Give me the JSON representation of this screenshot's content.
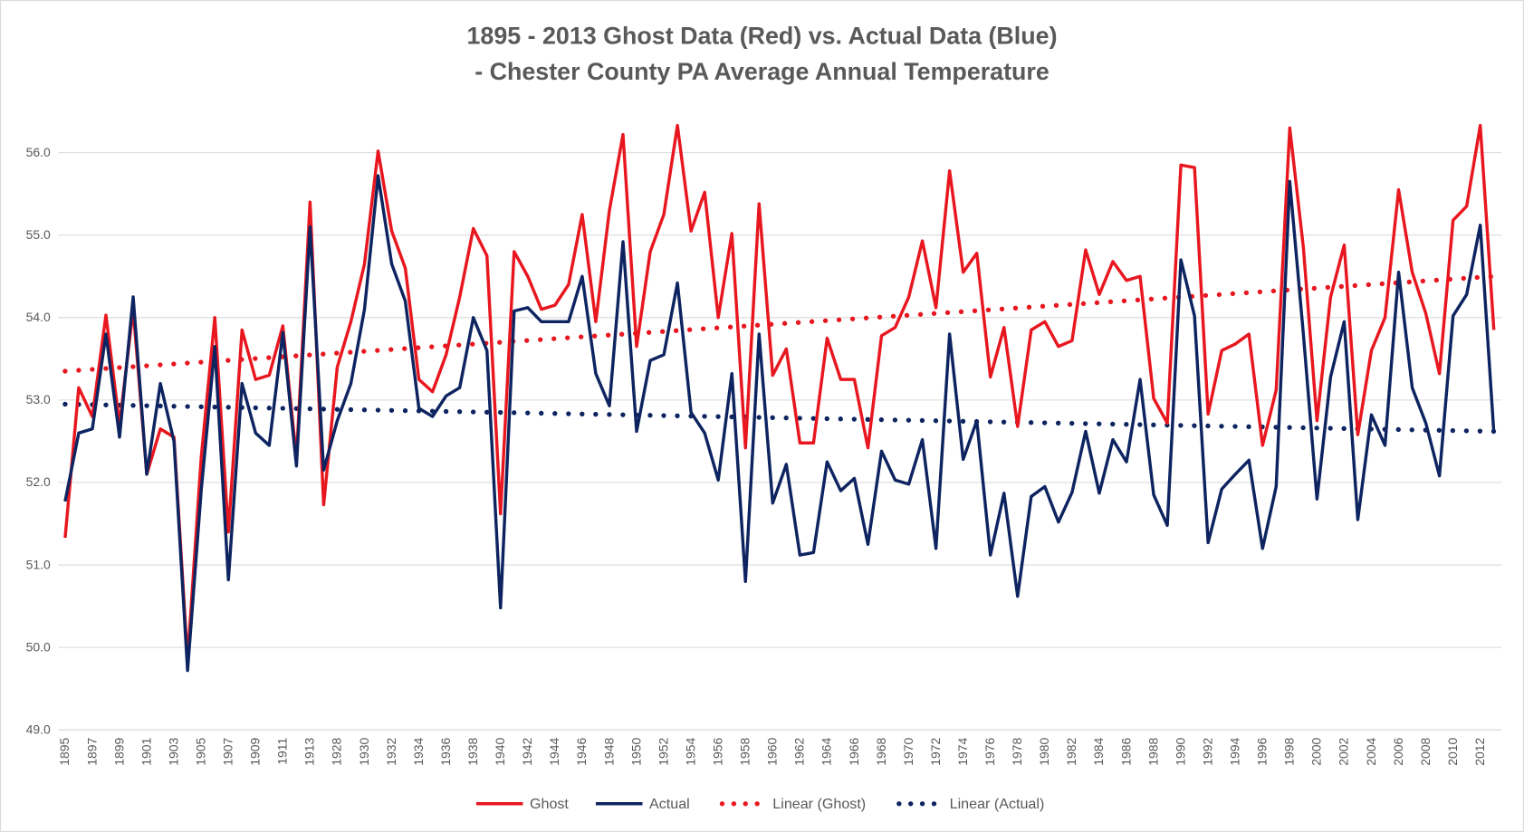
{
  "chart_data": {
    "type": "line",
    "title": [
      "1895 - 2013 Ghost Data (Red) vs. Actual Data (Blue)",
      "- Chester County PA Average Annual Temperature"
    ],
    "categories": [
      "1895",
      null,
      "1897",
      null,
      "1899",
      null,
      "1901",
      null,
      "1903",
      null,
      "1905",
      null,
      "1907",
      null,
      "1909",
      null,
      "1911",
      null,
      "1913",
      null,
      "1928",
      null,
      "1930",
      null,
      "1932",
      null,
      "1934",
      null,
      "1936",
      null,
      "1938",
      null,
      "1940",
      null,
      "1942",
      null,
      "1944",
      null,
      "1946",
      null,
      "1948",
      null,
      "1950",
      null,
      "1952",
      null,
      "1954",
      null,
      "1956",
      null,
      "1958",
      null,
      "1960",
      null,
      "1962",
      null,
      "1964",
      null,
      "1966",
      null,
      "1968",
      null,
      "1970",
      null,
      "1972",
      null,
      "1974",
      null,
      "1976",
      null,
      "1978",
      null,
      "1980",
      null,
      "1982",
      null,
      "1984",
      null,
      "1986",
      null,
      "1988",
      null,
      "1990",
      null,
      "1992",
      null,
      "1994",
      null,
      "1996",
      null,
      "1998",
      null,
      "2000",
      null,
      "2002",
      null,
      "2004",
      null,
      "2006",
      null,
      "2008",
      null,
      "2010",
      null,
      "2012",
      null
    ],
    "series": [
      {
        "name": "Ghost",
        "color": "#e8171f",
        "values": [
          51.33,
          53.15,
          52.8,
          54.03,
          52.7,
          54.1,
          52.1,
          52.65,
          52.55,
          49.85,
          52.3,
          54.0,
          51.4,
          53.85,
          53.25,
          53.3,
          53.9,
          52.3,
          55.4,
          51.73,
          53.4,
          53.95,
          54.65,
          56.02,
          55.05,
          54.6,
          53.25,
          53.1,
          53.55,
          54.25,
          55.08,
          54.75,
          51.62,
          54.8,
          54.5,
          54.1,
          54.15,
          54.4,
          55.25,
          53.95,
          55.3,
          56.22,
          53.65,
          54.8,
          55.25,
          56.33,
          55.05,
          55.52,
          54.0,
          55.02,
          52.42,
          55.38,
          53.3,
          53.62,
          52.48,
          52.48,
          53.75,
          53.25,
          53.25,
          52.42,
          53.78,
          53.88,
          54.25,
          54.93,
          54.12,
          55.78,
          54.55,
          54.78,
          53.28,
          53.88,
          52.68,
          53.85,
          53.95,
          53.65,
          53.72,
          54.82,
          54.28,
          54.68,
          54.45,
          54.5,
          53.02,
          52.72,
          55.85,
          55.82,
          52.83,
          53.6,
          53.68,
          53.8,
          52.45,
          53.12,
          56.3,
          54.85,
          52.75,
          54.25,
          54.88,
          52.58,
          53.6,
          54.0,
          55.55,
          54.55,
          54.05,
          53.32,
          55.18,
          55.35,
          56.33,
          53.85
        ]
      },
      {
        "name": "Actual",
        "color": "#0d2461",
        "values": [
          51.77,
          52.6,
          52.65,
          53.8,
          52.55,
          54.25,
          52.1,
          53.2,
          52.5,
          49.72,
          51.9,
          53.65,
          50.82,
          53.2,
          52.6,
          52.45,
          53.82,
          52.2,
          55.1,
          52.15,
          52.75,
          53.2,
          54.1,
          55.72,
          54.65,
          54.2,
          52.9,
          52.8,
          53.05,
          53.15,
          54.0,
          53.6,
          50.48,
          54.08,
          54.12,
          53.95,
          53.95,
          53.95,
          54.5,
          53.32,
          52.93,
          54.92,
          52.62,
          53.48,
          53.55,
          54.42,
          52.85,
          52.6,
          52.03,
          53.32,
          50.8,
          53.8,
          51.75,
          52.22,
          51.12,
          51.15,
          52.25,
          51.9,
          52.05,
          51.25,
          52.38,
          52.03,
          51.98,
          52.52,
          51.2,
          53.8,
          52.28,
          52.75,
          51.12,
          51.87,
          50.62,
          51.83,
          51.95,
          51.52,
          51.88,
          52.62,
          51.87,
          52.52,
          52.25,
          53.25,
          51.85,
          51.48,
          54.7,
          54.02,
          51.27,
          51.92,
          52.1,
          52.27,
          51.2,
          51.95,
          55.65,
          53.8,
          51.8,
          53.28,
          53.95,
          51.55,
          52.82,
          52.45,
          54.55,
          53.15,
          52.72,
          52.08,
          54.02,
          54.28,
          55.12,
          52.6
        ]
      }
    ],
    "trendlines": [
      {
        "name": "Linear (Ghost)",
        "color": "#e8171f",
        "ends": [
          53.35,
          54.5
        ]
      },
      {
        "name": "Linear (Actual)",
        "color": "#0d2461",
        "ends": [
          52.95,
          52.62
        ]
      }
    ],
    "ylim": [
      49,
      56.5
    ],
    "yticks": [
      {
        "value": 49,
        "label": "49.0"
      },
      {
        "value": 50,
        "label": "50.0"
      },
      {
        "value": 51,
        "label": "51.0"
      },
      {
        "value": 52,
        "label": "52.0"
      },
      {
        "value": 53,
        "label": "53.0"
      },
      {
        "value": 54,
        "label": "54.0"
      },
      {
        "value": 55,
        "label": "55.0"
      },
      {
        "value": 56,
        "label": "56.0"
      }
    ],
    "grid": true
  }
}
